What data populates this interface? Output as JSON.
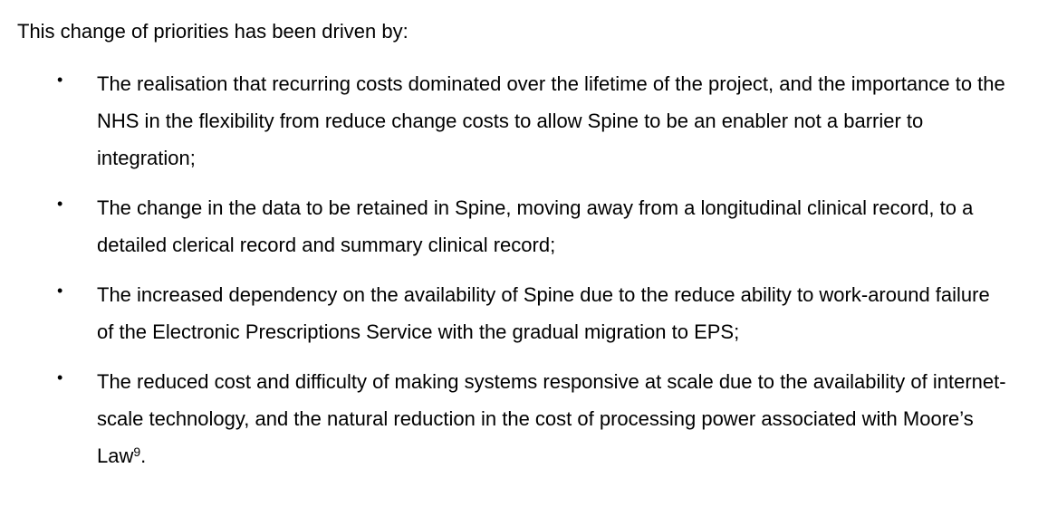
{
  "document": {
    "intro": "This change of priorities has been driven by:",
    "bullet_glyph": "•",
    "bullets": [
      {
        "text": "The realisation that recurring costs dominated over the lifetime of the project, and the importance to the NHS in the flexibility from reduce change costs to allow Spine to be an enabler not a barrier to integration;"
      },
      {
        "text": "The change in the data to be retained in Spine, moving away from a longitudinal clinical record, to a detailed clerical record and summary clinical record;"
      },
      {
        "text": "The increased dependency on the availability of Spine due to the reduce ability to work-around failure of the Electronic Prescriptions Service with the gradual migration to EPS;"
      },
      {
        "text": "The reduced cost and difficulty of making systems responsive at scale due to the availability of internet-scale technology, and the natural reduction in the cost of processing power associated with Moore’s Law",
        "footnote": "9",
        "trailing": "."
      }
    ]
  }
}
